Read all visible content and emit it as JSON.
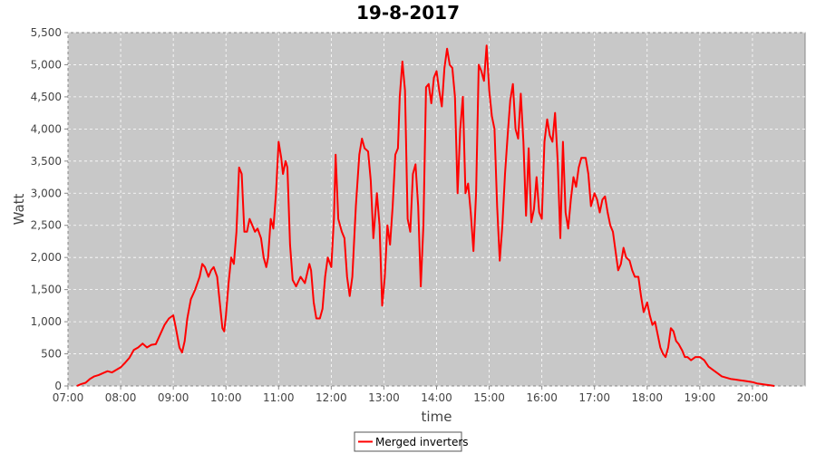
{
  "chart_data": {
    "type": "line",
    "title": "19-8-2017",
    "xlabel": "time",
    "ylabel": "Watt",
    "xlim": [
      "07:00",
      "21:00"
    ],
    "ylim": [
      0,
      5500
    ],
    "grid": true,
    "legend_position": "bottom",
    "plot_background": "#c8c8c8",
    "x_ticks": [
      "07:00",
      "08:00",
      "09:00",
      "10:00",
      "11:00",
      "12:00",
      "13:00",
      "14:00",
      "15:00",
      "16:00",
      "17:00",
      "18:00",
      "19:00",
      "20:00"
    ],
    "y_ticks": [
      {
        "value": 0,
        "label": "0"
      },
      {
        "value": 500,
        "label": "500"
      },
      {
        "value": 1000,
        "label": "1,000"
      },
      {
        "value": 1500,
        "label": "1,500"
      },
      {
        "value": 2000,
        "label": "2,000"
      },
      {
        "value": 2500,
        "label": "2,500"
      },
      {
        "value": 3000,
        "label": "3,000"
      },
      {
        "value": 3500,
        "label": "3,500"
      },
      {
        "value": 4000,
        "label": "4,000"
      },
      {
        "value": 4500,
        "label": "4,500"
      },
      {
        "value": 5000,
        "label": "5,000"
      },
      {
        "value": 5500,
        "label": "5,500"
      }
    ],
    "series": [
      {
        "name": "Merged inverters",
        "color": "#ff0000",
        "points": [
          [
            "07:10",
            0
          ],
          [
            "07:15",
            30
          ],
          [
            "07:20",
            50
          ],
          [
            "07:25",
            110
          ],
          [
            "07:30",
            150
          ],
          [
            "07:35",
            170
          ],
          [
            "07:40",
            200
          ],
          [
            "07:45",
            230
          ],
          [
            "07:50",
            210
          ],
          [
            "07:55",
            250
          ],
          [
            "08:00",
            290
          ],
          [
            "08:05",
            360
          ],
          [
            "08:10",
            440
          ],
          [
            "08:15",
            560
          ],
          [
            "08:20",
            600
          ],
          [
            "08:25",
            660
          ],
          [
            "08:30",
            600
          ],
          [
            "08:35",
            640
          ],
          [
            "08:40",
            650
          ],
          [
            "08:45",
            800
          ],
          [
            "08:50",
            950
          ],
          [
            "08:55",
            1050
          ],
          [
            "09:00",
            1100
          ],
          [
            "09:03",
            900
          ],
          [
            "09:07",
            600
          ],
          [
            "09:10",
            520
          ],
          [
            "09:13",
            700
          ],
          [
            "09:16",
            1050
          ],
          [
            "09:20",
            1350
          ],
          [
            "09:25",
            1500
          ],
          [
            "09:30",
            1700
          ],
          [
            "09:33",
            1900
          ],
          [
            "09:36",
            1850
          ],
          [
            "09:40",
            1700
          ],
          [
            "09:43",
            1800
          ],
          [
            "09:46",
            1850
          ],
          [
            "09:50",
            1700
          ],
          [
            "09:53",
            1300
          ],
          [
            "09:56",
            900
          ],
          [
            "09:58",
            850
          ],
          [
            "10:00",
            1100
          ],
          [
            "10:03",
            1600
          ],
          [
            "10:06",
            2000
          ],
          [
            "10:09",
            1900
          ],
          [
            "10:12",
            2400
          ],
          [
            "10:15",
            3400
          ],
          [
            "10:18",
            3300
          ],
          [
            "10:21",
            2400
          ],
          [
            "10:24",
            2400
          ],
          [
            "10:27",
            2600
          ],
          [
            "10:30",
            2500
          ],
          [
            "10:33",
            2400
          ],
          [
            "10:36",
            2450
          ],
          [
            "10:40",
            2300
          ],
          [
            "10:43",
            2000
          ],
          [
            "10:46",
            1850
          ],
          [
            "10:48",
            2000
          ],
          [
            "10:51",
            2600
          ],
          [
            "10:54",
            2450
          ],
          [
            "10:57",
            3000
          ],
          [
            "11:00",
            3800
          ],
          [
            "11:03",
            3550
          ],
          [
            "11:05",
            3300
          ],
          [
            "11:08",
            3500
          ],
          [
            "11:10",
            3400
          ],
          [
            "11:13",
            2200
          ],
          [
            "11:16",
            1650
          ],
          [
            "11:20",
            1550
          ],
          [
            "11:25",
            1700
          ],
          [
            "11:30",
            1600
          ],
          [
            "11:35",
            1900
          ],
          [
            "11:37",
            1800
          ],
          [
            "11:40",
            1300
          ],
          [
            "11:43",
            1050
          ],
          [
            "11:47",
            1050
          ],
          [
            "11:50",
            1200
          ],
          [
            "11:53",
            1700
          ],
          [
            "11:56",
            2000
          ],
          [
            "12:00",
            1850
          ],
          [
            "12:03",
            2600
          ],
          [
            "12:05",
            3600
          ],
          [
            "12:08",
            2600
          ],
          [
            "12:12",
            2400
          ],
          [
            "12:15",
            2300
          ],
          [
            "12:18",
            1700
          ],
          [
            "12:21",
            1400
          ],
          [
            "12:24",
            1700
          ],
          [
            "12:28",
            2800
          ],
          [
            "12:32",
            3600
          ],
          [
            "12:35",
            3850
          ],
          [
            "12:38",
            3700
          ],
          [
            "12:42",
            3650
          ],
          [
            "12:45",
            3200
          ],
          [
            "12:48",
            2300
          ],
          [
            "12:52",
            3000
          ],
          [
            "12:55",
            2500
          ],
          [
            "12:58",
            1250
          ],
          [
            "13:01",
            1700
          ],
          [
            "13:04",
            2500
          ],
          [
            "13:07",
            2200
          ],
          [
            "13:10",
            2800
          ],
          [
            "13:13",
            3600
          ],
          [
            "13:16",
            3700
          ],
          [
            "13:18",
            4500
          ],
          [
            "13:21",
            5050
          ],
          [
            "13:24",
            4600
          ],
          [
            "13:27",
            2600
          ],
          [
            "13:30",
            2400
          ],
          [
            "13:33",
            3300
          ],
          [
            "13:36",
            3450
          ],
          [
            "13:39",
            2800
          ],
          [
            "13:42",
            1550
          ],
          [
            "13:45",
            2500
          ],
          [
            "13:48",
            4650
          ],
          [
            "13:51",
            4700
          ],
          [
            "13:54",
            4400
          ],
          [
            "13:57",
            4800
          ],
          [
            "14:00",
            4900
          ],
          [
            "14:03",
            4600
          ],
          [
            "14:06",
            4350
          ],
          [
            "14:09",
            4950
          ],
          [
            "14:12",
            5250
          ],
          [
            "14:15",
            5000
          ],
          [
            "14:18",
            4950
          ],
          [
            "14:21",
            4500
          ],
          [
            "14:24",
            3000
          ],
          [
            "14:27",
            4000
          ],
          [
            "14:30",
            4500
          ],
          [
            "14:33",
            3000
          ],
          [
            "14:36",
            3150
          ],
          [
            "14:39",
            2700
          ],
          [
            "14:42",
            2100
          ],
          [
            "14:45",
            3000
          ],
          [
            "14:48",
            5000
          ],
          [
            "14:51",
            4900
          ],
          [
            "14:54",
            4750
          ],
          [
            "14:57",
            5300
          ],
          [
            "15:00",
            4600
          ],
          [
            "15:03",
            4200
          ],
          [
            "15:06",
            4000
          ],
          [
            "15:09",
            2800
          ],
          [
            "15:12",
            1950
          ],
          [
            "15:15",
            2500
          ],
          [
            "15:18",
            3300
          ],
          [
            "15:21",
            3900
          ],
          [
            "15:24",
            4450
          ],
          [
            "15:27",
            4700
          ],
          [
            "15:30",
            4000
          ],
          [
            "15:33",
            3850
          ],
          [
            "15:36",
            4550
          ],
          [
            "15:39",
            3800
          ],
          [
            "15:42",
            2650
          ],
          [
            "15:45",
            3700
          ],
          [
            "15:48",
            2550
          ],
          [
            "15:51",
            2750
          ],
          [
            "15:54",
            3250
          ],
          [
            "15:57",
            2700
          ],
          [
            "16:00",
            2600
          ],
          [
            "16:03",
            3800
          ],
          [
            "16:06",
            4150
          ],
          [
            "16:09",
            3900
          ],
          [
            "16:12",
            3800
          ],
          [
            "16:15",
            4250
          ],
          [
            "16:18",
            3500
          ],
          [
            "16:21",
            2300
          ],
          [
            "16:24",
            3800
          ],
          [
            "16:27",
            2700
          ],
          [
            "16:30",
            2450
          ],
          [
            "16:33",
            2900
          ],
          [
            "16:36",
            3250
          ],
          [
            "16:39",
            3100
          ],
          [
            "16:42",
            3400
          ],
          [
            "16:45",
            3550
          ],
          [
            "16:50",
            3550
          ],
          [
            "16:53",
            3300
          ],
          [
            "16:56",
            2800
          ],
          [
            "17:00",
            3000
          ],
          [
            "17:03",
            2900
          ],
          [
            "17:06",
            2700
          ],
          [
            "17:09",
            2900
          ],
          [
            "17:12",
            2950
          ],
          [
            "17:15",
            2700
          ],
          [
            "17:18",
            2500
          ],
          [
            "17:21",
            2400
          ],
          [
            "17:24",
            2100
          ],
          [
            "17:27",
            1800
          ],
          [
            "17:30",
            1900
          ],
          [
            "17:33",
            2150
          ],
          [
            "17:36",
            2000
          ],
          [
            "17:40",
            1950
          ],
          [
            "17:43",
            1800
          ],
          [
            "17:46",
            1700
          ],
          [
            "17:50",
            1700
          ],
          [
            "17:53",
            1400
          ],
          [
            "17:56",
            1150
          ],
          [
            "18:00",
            1300
          ],
          [
            "18:03",
            1100
          ],
          [
            "18:06",
            950
          ],
          [
            "18:09",
            1000
          ],
          [
            "18:12",
            800
          ],
          [
            "18:15",
            600
          ],
          [
            "18:18",
            500
          ],
          [
            "18:21",
            450
          ],
          [
            "18:24",
            600
          ],
          [
            "18:27",
            900
          ],
          [
            "18:30",
            850
          ],
          [
            "18:33",
            700
          ],
          [
            "18:36",
            650
          ],
          [
            "18:40",
            550
          ],
          [
            "18:43",
            450
          ],
          [
            "18:46",
            450
          ],
          [
            "18:50",
            400
          ],
          [
            "18:55",
            450
          ],
          [
            "19:00",
            450
          ],
          [
            "19:05",
            400
          ],
          [
            "19:10",
            300
          ],
          [
            "19:15",
            250
          ],
          [
            "19:20",
            200
          ],
          [
            "19:25",
            150
          ],
          [
            "19:30",
            130
          ],
          [
            "19:35",
            110
          ],
          [
            "19:40",
            100
          ],
          [
            "19:45",
            90
          ],
          [
            "19:50",
            80
          ],
          [
            "19:55",
            70
          ],
          [
            "20:00",
            60
          ],
          [
            "20:05",
            40
          ],
          [
            "20:10",
            30
          ],
          [
            "20:15",
            20
          ],
          [
            "20:20",
            10
          ],
          [
            "20:25",
            0
          ]
        ]
      }
    ]
  }
}
